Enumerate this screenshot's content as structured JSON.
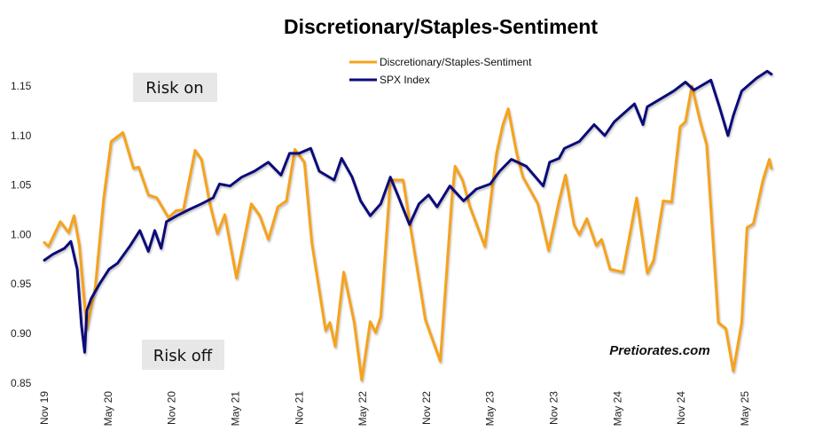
{
  "chart_data": {
    "type": "line",
    "title": "Discretionary/Staples-Sentiment",
    "xlabel": "",
    "ylabel": "",
    "x_unit": "months since Nov 2019",
    "xlim": [
      0,
      70
    ],
    "ylim": [
      0.85,
      1.17
    ],
    "yticks": [
      0.85,
      0.9,
      0.95,
      1.0,
      1.05,
      1.1,
      1.15
    ],
    "ytick_labels": [
      "0.85",
      "0.90",
      "0.95",
      "1.00",
      "1.05",
      "1.10",
      "1.15"
    ],
    "xticks": [
      0,
      6,
      12,
      18,
      24,
      30,
      36,
      42,
      48,
      54,
      60,
      66
    ],
    "xtick_labels": [
      "Nov 19",
      "May 20",
      "Nov 20",
      "May 21",
      "Nov 21",
      "May 22",
      "Nov 22",
      "May 23",
      "Nov 23",
      "May 24",
      "Nov 24",
      "May 25"
    ],
    "grid": false,
    "legend_position": "top-center",
    "series": [
      {
        "name": "Discretionary/Staples-Sentiment",
        "color": "#f7a21b",
        "points": [
          [
            0,
            0.992
          ],
          [
            0.4,
            0.988
          ],
          [
            1.5,
            1.013
          ],
          [
            2.3,
            1.002
          ],
          [
            2.8,
            1.019
          ],
          [
            3.3,
            0.989
          ],
          [
            4.0,
            0.905
          ],
          [
            4.8,
            0.947
          ],
          [
            5.6,
            1.037
          ],
          [
            6.3,
            1.094
          ],
          [
            7.4,
            1.103
          ],
          [
            8.4,
            1.067
          ],
          [
            8.9,
            1.068
          ],
          [
            9.8,
            1.04
          ],
          [
            10.6,
            1.037
          ],
          [
            11.7,
            1.017
          ],
          [
            12.4,
            1.024
          ],
          [
            13.1,
            1.025
          ],
          [
            14.2,
            1.085
          ],
          [
            14.8,
            1.076
          ],
          [
            15.6,
            1.031
          ],
          [
            16.3,
            1.001
          ],
          [
            17.0,
            1.02
          ],
          [
            18.1,
            0.956
          ],
          [
            19.5,
            1.031
          ],
          [
            20.3,
            1.019
          ],
          [
            21.1,
            0.995
          ],
          [
            22.0,
            1.028
          ],
          [
            22.8,
            1.034
          ],
          [
            23.6,
            1.086
          ],
          [
            24.5,
            1.073
          ],
          [
            25.2,
            0.992
          ],
          [
            26.5,
            0.903
          ],
          [
            26.9,
            0.911
          ],
          [
            27.4,
            0.887
          ],
          [
            28.2,
            0.962
          ],
          [
            29.2,
            0.911
          ],
          [
            29.9,
            0.853
          ],
          [
            30.7,
            0.912
          ],
          [
            31.2,
            0.901
          ],
          [
            31.7,
            0.917
          ],
          [
            32.6,
            1.055
          ],
          [
            33.8,
            1.055
          ],
          [
            34.5,
            1.007
          ],
          [
            35.9,
            0.914
          ],
          [
            37.3,
            0.872
          ],
          [
            38.4,
            1.037
          ],
          [
            38.7,
            1.069
          ],
          [
            39.4,
            1.055
          ],
          [
            40.1,
            1.028
          ],
          [
            41.5,
            0.988
          ],
          [
            42.6,
            1.082
          ],
          [
            43.2,
            1.111
          ],
          [
            43.7,
            1.127
          ],
          [
            44.5,
            1.082
          ],
          [
            45.1,
            1.058
          ],
          [
            46.5,
            1.031
          ],
          [
            47.5,
            0.984
          ],
          [
            48.5,
            1.034
          ],
          [
            49.1,
            1.06
          ],
          [
            49.9,
            1.01
          ],
          [
            50.4,
            1.0
          ],
          [
            51.1,
            1.016
          ],
          [
            52.0,
            0.989
          ],
          [
            52.5,
            0.995
          ],
          [
            53.3,
            0.965
          ],
          [
            54.5,
            0.962
          ],
          [
            55.8,
            1.037
          ],
          [
            56.8,
            0.961
          ],
          [
            57.4,
            0.974
          ],
          [
            58.3,
            1.034
          ],
          [
            59.1,
            1.033
          ],
          [
            59.9,
            1.109
          ],
          [
            60.4,
            1.114
          ],
          [
            61.0,
            1.15
          ],
          [
            61.8,
            1.114
          ],
          [
            62.4,
            1.091
          ],
          [
            63.5,
            0.911
          ],
          [
            64.2,
            0.905
          ],
          [
            64.9,
            0.862
          ],
          [
            65.7,
            0.911
          ],
          [
            66.2,
            1.007
          ],
          [
            66.8,
            1.011
          ],
          [
            67.7,
            1.055
          ],
          [
            68.3,
            1.076
          ],
          [
            68.5,
            1.067
          ]
        ]
      },
      {
        "name": "SPX Index",
        "color": "#0b0b7a",
        "points": [
          [
            0,
            0.974
          ],
          [
            0.8,
            0.98
          ],
          [
            1.9,
            0.986
          ],
          [
            2.5,
            0.993
          ],
          [
            3.1,
            0.965
          ],
          [
            3.5,
            0.908
          ],
          [
            3.8,
            0.881
          ],
          [
            4.0,
            0.923
          ],
          [
            4.4,
            0.935
          ],
          [
            5.2,
            0.95
          ],
          [
            6.1,
            0.965
          ],
          [
            6.9,
            0.971
          ],
          [
            8.1,
            0.989
          ],
          [
            9.0,
            1.004
          ],
          [
            9.8,
            0.983
          ],
          [
            10.4,
            1.004
          ],
          [
            11.0,
            0.986
          ],
          [
            11.5,
            1.013
          ],
          [
            12.5,
            1.019
          ],
          [
            13.6,
            1.025
          ],
          [
            14.8,
            1.031
          ],
          [
            15.9,
            1.037
          ],
          [
            16.5,
            1.051
          ],
          [
            17.5,
            1.049
          ],
          [
            18.6,
            1.058
          ],
          [
            19.8,
            1.064
          ],
          [
            21.1,
            1.073
          ],
          [
            22.3,
            1.06
          ],
          [
            23.1,
            1.082
          ],
          [
            24.0,
            1.082
          ],
          [
            25.1,
            1.087
          ],
          [
            25.9,
            1.064
          ],
          [
            27.3,
            1.055
          ],
          [
            28.0,
            1.077
          ],
          [
            29.0,
            1.058
          ],
          [
            29.8,
            1.034
          ],
          [
            30.7,
            1.019
          ],
          [
            31.7,
            1.031
          ],
          [
            32.6,
            1.058
          ],
          [
            33.4,
            1.037
          ],
          [
            34.4,
            1.01
          ],
          [
            35.3,
            1.031
          ],
          [
            36.2,
            1.04
          ],
          [
            37.0,
            1.028
          ],
          [
            38.2,
            1.049
          ],
          [
            39.5,
            1.034
          ],
          [
            40.7,
            1.046
          ],
          [
            42.0,
            1.051
          ],
          [
            42.9,
            1.064
          ],
          [
            44.0,
            1.076
          ],
          [
            45.4,
            1.069
          ],
          [
            47.0,
            1.049
          ],
          [
            47.6,
            1.073
          ],
          [
            48.5,
            1.077
          ],
          [
            49.0,
            1.087
          ],
          [
            50.4,
            1.094
          ],
          [
            51.8,
            1.111
          ],
          [
            52.8,
            1.1
          ],
          [
            53.7,
            1.114
          ],
          [
            55.6,
            1.132
          ],
          [
            56.4,
            1.111
          ],
          [
            56.8,
            1.129
          ],
          [
            58.2,
            1.138
          ],
          [
            59.3,
            1.145
          ],
          [
            60.4,
            1.154
          ],
          [
            61.2,
            1.146
          ],
          [
            62.8,
            1.156
          ],
          [
            63.6,
            1.129
          ],
          [
            64.4,
            1.1
          ],
          [
            64.9,
            1.12
          ],
          [
            65.7,
            1.145
          ],
          [
            67.1,
            1.158
          ],
          [
            68.1,
            1.165
          ],
          [
            68.5,
            1.162
          ]
        ]
      }
    ],
    "annotations": [
      "Risk on",
      "Risk off",
      "Pretiorates.com"
    ]
  }
}
